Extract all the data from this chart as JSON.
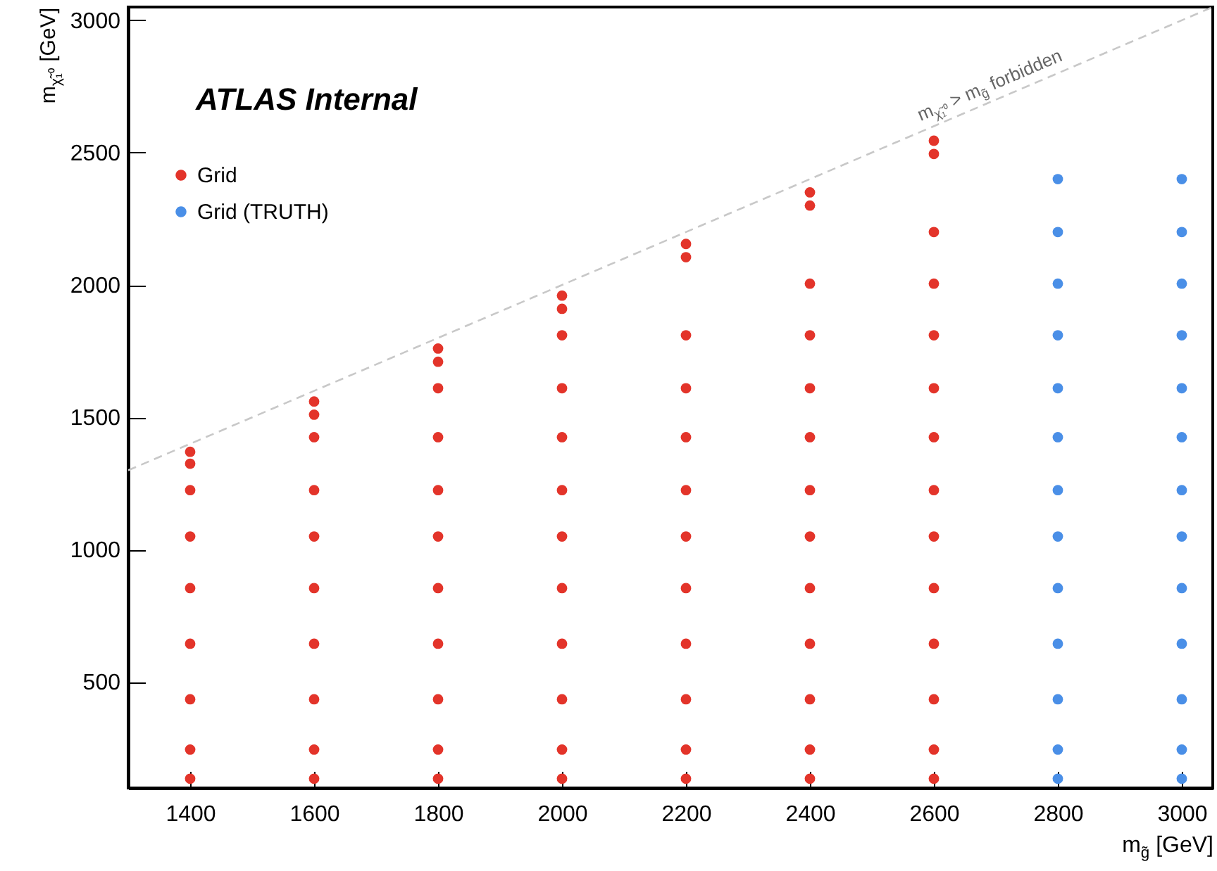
{
  "chart_data": {
    "type": "scatter",
    "xlabel": "m$_{g̃}$ [GeV]",
    "ylabel": "m$_{χ̃₁⁰}$ [GeV]",
    "xlim": [
      1300,
      3050
    ],
    "ylim": [
      100,
      3050
    ],
    "xticks": [
      1400,
      1600,
      1800,
      2000,
      2200,
      2400,
      2600,
      2800,
      3000
    ],
    "yticks": [
      500,
      1000,
      1500,
      2000,
      2500,
      3000
    ],
    "grid": false,
    "legend": "top left",
    "annotations": [
      "ATLAS Internal",
      {
        "text": "m$_{χ̃₁⁰}$ > m$_{g̃}$ forbidden",
        "x": 2700,
        "y": 2700
      }
    ],
    "series": [
      {
        "name": "Grid",
        "type": "scatter",
        "marker": "circle",
        "color": "#e3342a",
        "x": [
          1400,
          1400,
          1400,
          1400,
          1400,
          1400,
          1400,
          1400,
          1400,
          1600,
          1600,
          1600,
          1600,
          1600,
          1600,
          1600,
          1600,
          1600,
          1600,
          1800,
          1800,
          1800,
          1800,
          1800,
          1800,
          1800,
          1800,
          1800,
          1800,
          1800,
          2000,
          2000,
          2000,
          2000,
          2000,
          2000,
          2000,
          2000,
          2000,
          2000,
          2000,
          2000,
          2200,
          2200,
          2200,
          2200,
          2200,
          2200,
          2200,
          2200,
          2200,
          2200,
          2200,
          2200,
          2400,
          2400,
          2400,
          2400,
          2400,
          2400,
          2400,
          2400,
          2400,
          2400,
          2400,
          2400,
          2400,
          2600,
          2600,
          2600,
          2600,
          2600,
          2600,
          2600,
          2600,
          2600,
          2600,
          2600,
          2600,
          2600,
          2600
        ],
        "values": [
          135,
          245,
          435,
          645,
          855,
          1050,
          1225,
          1325,
          1370,
          135,
          245,
          435,
          645,
          855,
          1050,
          1225,
          1425,
          1510,
          1560,
          135,
          245,
          435,
          645,
          855,
          1050,
          1225,
          1425,
          1610,
          1710,
          1760,
          135,
          245,
          435,
          645,
          855,
          1050,
          1225,
          1425,
          1610,
          1810,
          1910,
          1960,
          135,
          245,
          435,
          645,
          855,
          1050,
          1225,
          1425,
          1610,
          1810,
          2105,
          2155,
          135,
          245,
          435,
          645,
          855,
          1050,
          1225,
          1425,
          1610,
          1810,
          2005,
          2300,
          2350,
          135,
          245,
          435,
          645,
          855,
          1050,
          1225,
          1425,
          1610,
          1810,
          2005,
          2200,
          2495,
          2545
        ]
      },
      {
        "name": "Grid  (TRUTH)",
        "type": "scatter",
        "marker": "circle",
        "color": "#4a8fe7",
        "x": [
          2800,
          2800,
          2800,
          2800,
          2800,
          2800,
          2800,
          2800,
          2800,
          2800,
          2800,
          2800,
          2800,
          3000,
          3000,
          3000,
          3000,
          3000,
          3000,
          3000,
          3000,
          3000,
          3000,
          3000,
          3000,
          3000
        ],
        "values": [
          135,
          245,
          435,
          645,
          855,
          1050,
          1225,
          1425,
          1610,
          1810,
          2005,
          2200,
          2400,
          135,
          245,
          435,
          645,
          855,
          1050,
          1225,
          1425,
          1610,
          1810,
          2005,
          2200,
          2400
        ]
      },
      {
        "type": "line",
        "color": "#c8c8c8",
        "line_style": "dashed",
        "x": [
          1300,
          3050
        ],
        "values": [
          1300,
          3050
        ]
      }
    ]
  }
}
